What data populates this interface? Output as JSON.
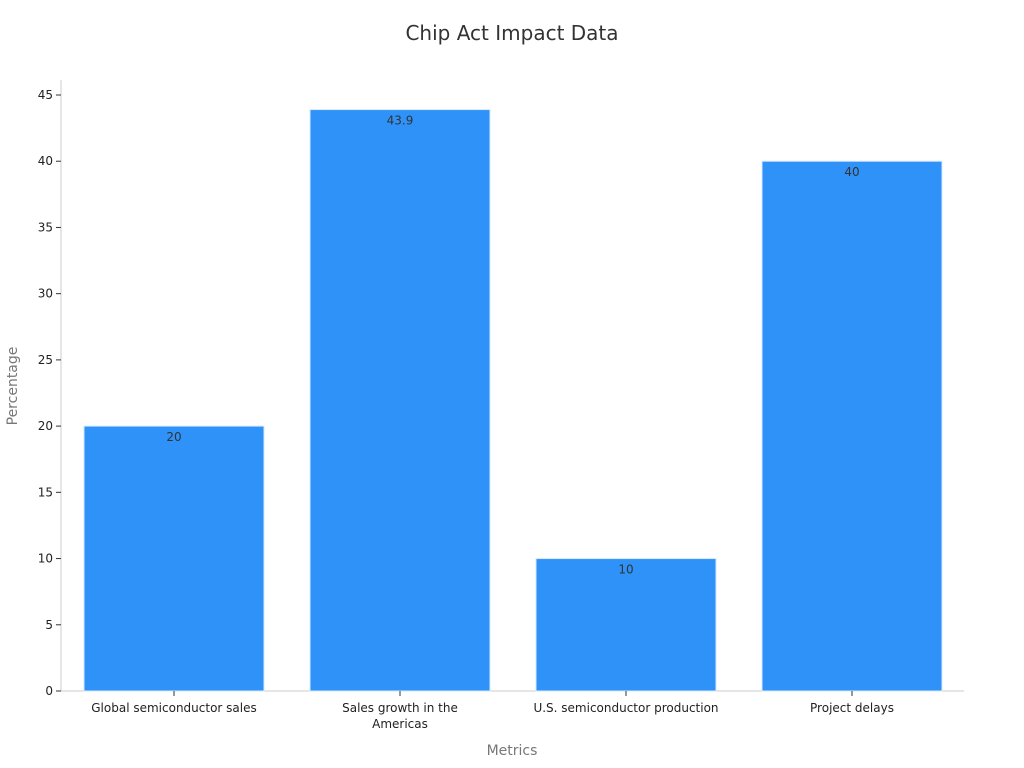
{
  "chart_data": {
    "type": "bar",
    "title": "Chip Act Impact Data",
    "xlabel": "Metrics",
    "ylabel": "Percentage",
    "categories": [
      [
        "Global semiconductor sales"
      ],
      [
        "Sales growth in the",
        "Americas"
      ],
      [
        "U.S. semiconductor production"
      ],
      [
        "Project delays"
      ]
    ],
    "values": [
      20,
      43.9,
      10,
      40
    ],
    "data_labels": [
      "20",
      "43.9",
      "10",
      "40"
    ],
    "ylim": [
      0,
      45
    ],
    "yticks": [
      0,
      5,
      10,
      15,
      20,
      25,
      30,
      35,
      40,
      45
    ],
    "grid": false,
    "colors": {
      "bar": "#2f92f8",
      "bar_edge": "#d6e8fb",
      "axis": "#cccccc",
      "tick": "#333333"
    }
  }
}
